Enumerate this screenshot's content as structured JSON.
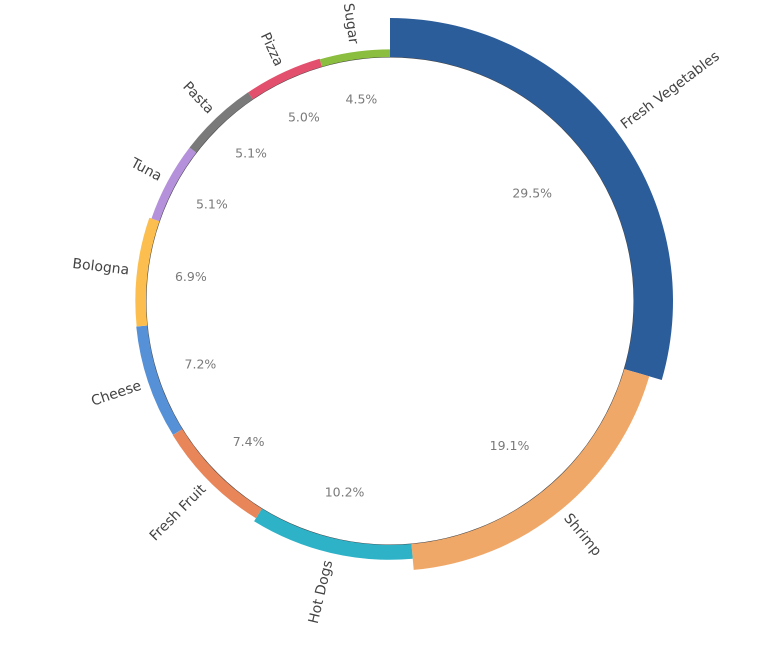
{
  "chart_data": {
    "type": "pie",
    "style": "radial-bar-donut",
    "title": "",
    "categories": [
      "Fresh Vegetables",
      "Shrimp",
      "Hot Dogs",
      "Fresh Fruit",
      "Cheese",
      "Bologna",
      "Tuna",
      "Pasta",
      "Pizza",
      "Sugar"
    ],
    "values": [
      29.5,
      19.1,
      10.2,
      7.4,
      7.2,
      6.9,
      5.1,
      5.1,
      5.0,
      4.5
    ],
    "value_labels": [
      "29.5%",
      "19.1%",
      "10.2%",
      "7.4%",
      "7.2%",
      "6.9%",
      "5.1%",
      "5.1%",
      "5.0%",
      "4.5%"
    ],
    "colors": [
      "#2c5d9b",
      "#f0a869",
      "#2eb2c8",
      "#e8865a",
      "#5690d6",
      "#fcbf4f",
      "#b590db",
      "#7a7a7a",
      "#e3506e",
      "#8bbd3e"
    ],
    "legend": "none",
    "grid": false
  }
}
